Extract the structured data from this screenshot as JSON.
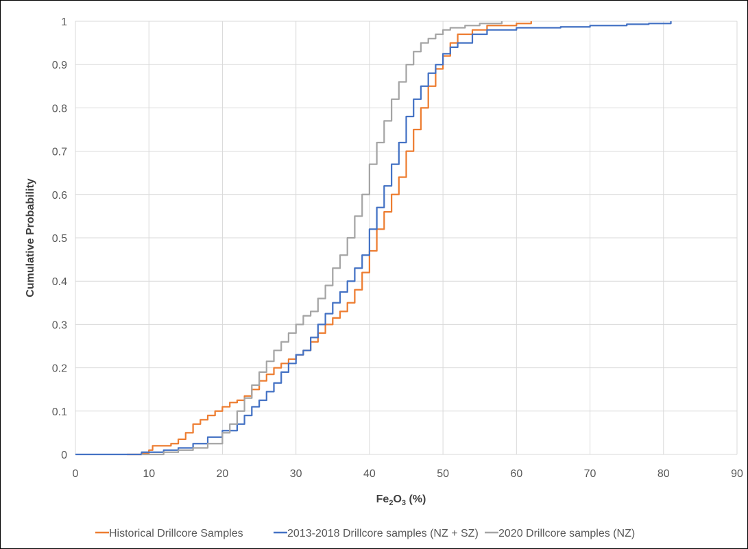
{
  "chart_data": {
    "type": "line",
    "xlabel": {
      "main": "Fe",
      "sub1": "2",
      "mid": "O",
      "sub2": "3",
      "tail": " (%)"
    },
    "ylabel": "Cumulative Probability",
    "xlim": [
      0,
      90
    ],
    "ylim": [
      0,
      1
    ],
    "xticks": [
      0,
      10,
      20,
      30,
      40,
      50,
      60,
      70,
      80,
      90
    ],
    "xtick_labels": [
      "0",
      "10",
      "20",
      "30",
      "40",
      "50",
      "60",
      "70",
      "80",
      "90"
    ],
    "yticks": [
      0,
      0.1,
      0.2,
      0.3,
      0.4,
      0.5,
      0.6,
      0.7,
      0.8,
      0.9,
      1
    ],
    "ytick_labels": [
      "0",
      "0.1",
      "0.2",
      "0.3",
      "0.4",
      "0.5",
      "0.6",
      "0.7",
      "0.8",
      "0.9",
      "1"
    ],
    "grid": {
      "vertical": true,
      "horizontal": true
    },
    "legend_position": "bottom",
    "series": [
      {
        "name": "Historical Drillcore Samples",
        "color": "#ED7D31",
        "points": [
          [
            7,
            0
          ],
          [
            9,
            0.003
          ],
          [
            10,
            0.01
          ],
          [
            10.5,
            0.02
          ],
          [
            13,
            0.025
          ],
          [
            14,
            0.035
          ],
          [
            15,
            0.05
          ],
          [
            16,
            0.07
          ],
          [
            17,
            0.08
          ],
          [
            18,
            0.09
          ],
          [
            19,
            0.1
          ],
          [
            20,
            0.11
          ],
          [
            21,
            0.12
          ],
          [
            22,
            0.125
          ],
          [
            23,
            0.135
          ],
          [
            24,
            0.15
          ],
          [
            25,
            0.17
          ],
          [
            26,
            0.185
          ],
          [
            27,
            0.2
          ],
          [
            28,
            0.21
          ],
          [
            29,
            0.22
          ],
          [
            30,
            0.23
          ],
          [
            31,
            0.24
          ],
          [
            32,
            0.26
          ],
          [
            33,
            0.28
          ],
          [
            34,
            0.3
          ],
          [
            35,
            0.315
          ],
          [
            36,
            0.33
          ],
          [
            37,
            0.35
          ],
          [
            38,
            0.38
          ],
          [
            39,
            0.42
          ],
          [
            40,
            0.47
          ],
          [
            41,
            0.52
          ],
          [
            42,
            0.56
          ],
          [
            43,
            0.6
          ],
          [
            44,
            0.64
          ],
          [
            45,
            0.7
          ],
          [
            46,
            0.75
          ],
          [
            47,
            0.8
          ],
          [
            48,
            0.85
          ],
          [
            49,
            0.89
          ],
          [
            50,
            0.92
          ],
          [
            51,
            0.95
          ],
          [
            52,
            0.97
          ],
          [
            54,
            0.98
          ],
          [
            56,
            0.99
          ],
          [
            60,
            0.995
          ],
          [
            62,
            1
          ]
        ]
      },
      {
        "name": "2013-2018 Drillcore samples (NZ + SZ)",
        "color": "#4472C4",
        "points": [
          [
            0,
            0
          ],
          [
            9,
            0.005
          ],
          [
            12,
            0.01
          ],
          [
            14,
            0.015
          ],
          [
            16,
            0.025
          ],
          [
            18,
            0.04
          ],
          [
            20,
            0.055
          ],
          [
            22,
            0.07
          ],
          [
            23,
            0.09
          ],
          [
            24,
            0.11
          ],
          [
            25,
            0.125
          ],
          [
            26,
            0.145
          ],
          [
            27,
            0.165
          ],
          [
            28,
            0.19
          ],
          [
            29,
            0.21
          ],
          [
            30,
            0.23
          ],
          [
            31,
            0.24
          ],
          [
            32,
            0.27
          ],
          [
            33,
            0.3
          ],
          [
            34,
            0.325
          ],
          [
            35,
            0.35
          ],
          [
            36,
            0.375
          ],
          [
            37,
            0.4
          ],
          [
            38,
            0.43
          ],
          [
            39,
            0.46
          ],
          [
            40,
            0.52
          ],
          [
            41,
            0.57
          ],
          [
            42,
            0.62
          ],
          [
            43,
            0.67
          ],
          [
            44,
            0.72
          ],
          [
            45,
            0.78
          ],
          [
            46,
            0.82
          ],
          [
            47,
            0.85
          ],
          [
            48,
            0.88
          ],
          [
            49,
            0.9
          ],
          [
            50,
            0.925
          ],
          [
            51,
            0.94
          ],
          [
            52,
            0.95
          ],
          [
            54,
            0.97
          ],
          [
            56,
            0.98
          ],
          [
            60,
            0.985
          ],
          [
            66,
            0.987
          ],
          [
            70,
            0.99
          ],
          [
            75,
            0.993
          ],
          [
            78,
            0.995
          ],
          [
            81,
            1
          ]
        ]
      },
      {
        "name": "2020 Drillcore samples (NZ)",
        "color": "#A5A5A5",
        "points": [
          [
            9,
            0
          ],
          [
            12,
            0.005
          ],
          [
            14,
            0.01
          ],
          [
            16,
            0.015
          ],
          [
            18,
            0.025
          ],
          [
            20,
            0.05
          ],
          [
            21,
            0.07
          ],
          [
            22,
            0.1
          ],
          [
            23,
            0.13
          ],
          [
            24,
            0.16
          ],
          [
            25,
            0.19
          ],
          [
            26,
            0.215
          ],
          [
            27,
            0.24
          ],
          [
            28,
            0.26
          ],
          [
            29,
            0.28
          ],
          [
            30,
            0.3
          ],
          [
            31,
            0.32
          ],
          [
            32,
            0.33
          ],
          [
            33,
            0.36
          ],
          [
            34,
            0.39
          ],
          [
            35,
            0.43
          ],
          [
            36,
            0.46
          ],
          [
            37,
            0.5
          ],
          [
            38,
            0.55
          ],
          [
            39,
            0.6
          ],
          [
            40,
            0.67
          ],
          [
            41,
            0.72
          ],
          [
            42,
            0.77
          ],
          [
            43,
            0.82
          ],
          [
            44,
            0.86
          ],
          [
            45,
            0.9
          ],
          [
            46,
            0.93
          ],
          [
            47,
            0.95
          ],
          [
            48,
            0.96
          ],
          [
            49,
            0.97
          ],
          [
            50,
            0.98
          ],
          [
            51,
            0.985
          ],
          [
            53,
            0.99
          ],
          [
            55,
            0.995
          ],
          [
            58,
            1
          ]
        ]
      }
    ]
  }
}
